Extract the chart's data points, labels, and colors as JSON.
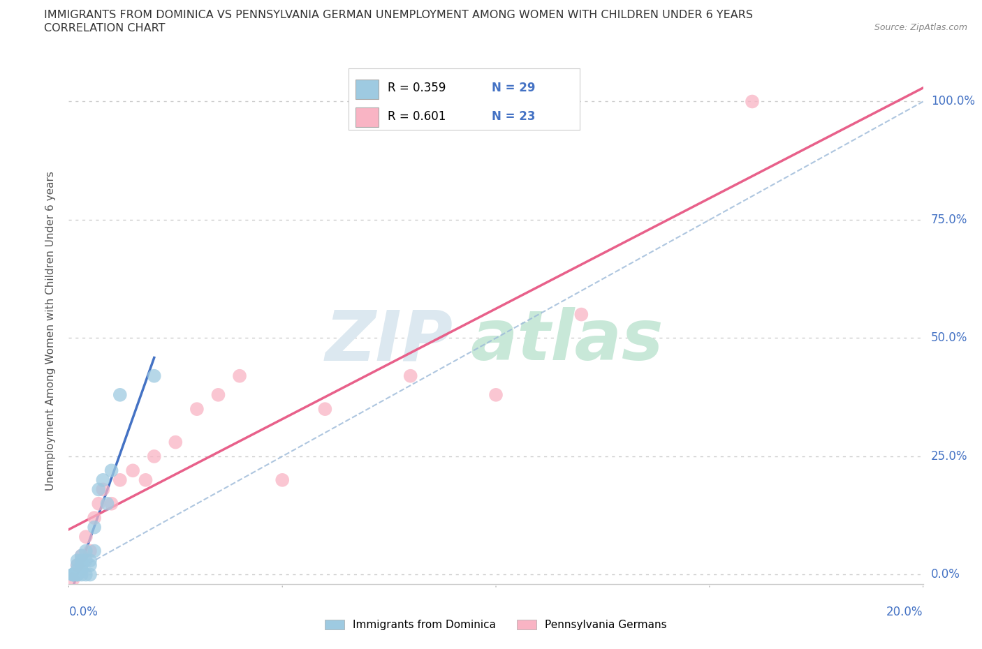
{
  "title_line1": "IMMIGRANTS FROM DOMINICA VS PENNSYLVANIA GERMAN UNEMPLOYMENT AMONG WOMEN WITH CHILDREN UNDER 6 YEARS",
  "title_line2": "CORRELATION CHART",
  "source": "Source: ZipAtlas.com",
  "ylabel": "Unemployment Among Women with Children Under 6 years",
  "xlim": [
    0.0,
    0.2
  ],
  "ylim": [
    -0.02,
    1.05
  ],
  "ytick_vals": [
    0.0,
    0.25,
    0.5,
    0.75,
    1.0
  ],
  "ytick_labels": [
    "0.0%",
    "25.0%",
    "50.0%",
    "75.0%",
    "100.0%"
  ],
  "xtick_labels_show": [
    "0.0%",
    "20.0%"
  ],
  "dominica_x": [
    0.001,
    0.001,
    0.001,
    0.001,
    0.002,
    0.002,
    0.002,
    0.002,
    0.002,
    0.002,
    0.003,
    0.003,
    0.003,
    0.003,
    0.003,
    0.004,
    0.004,
    0.004,
    0.005,
    0.005,
    0.005,
    0.006,
    0.006,
    0.007,
    0.008,
    0.009,
    0.01,
    0.012,
    0.02
  ],
  "dominica_y": [
    0.0,
    0.0,
    0.0,
    0.0,
    0.0,
    0.0,
    0.0,
    0.01,
    0.02,
    0.03,
    0.0,
    0.01,
    0.02,
    0.03,
    0.04,
    0.0,
    0.03,
    0.05,
    0.0,
    0.02,
    0.03,
    0.05,
    0.1,
    0.18,
    0.2,
    0.15,
    0.22,
    0.38,
    0.42
  ],
  "dominica_color": "#9ecae1",
  "dominica_label": "Immigrants from Dominica",
  "dominica_R": 0.359,
  "dominica_N": 29,
  "pagerman_x": [
    0.001,
    0.002,
    0.003,
    0.004,
    0.005,
    0.006,
    0.007,
    0.008,
    0.01,
    0.012,
    0.015,
    0.018,
    0.02,
    0.025,
    0.03,
    0.035,
    0.04,
    0.05,
    0.06,
    0.08,
    0.1,
    0.12,
    0.16
  ],
  "pagerman_y": [
    -0.01,
    0.02,
    0.04,
    0.08,
    0.05,
    0.12,
    0.15,
    0.18,
    0.15,
    0.2,
    0.22,
    0.2,
    0.25,
    0.28,
    0.35,
    0.38,
    0.42,
    0.2,
    0.35,
    0.42,
    0.38,
    0.55,
    1.0
  ],
  "pagerman_color": "#f9b4c4",
  "pagerman_label": "Pennsylvania Germans",
  "pagerman_R": 0.601,
  "pagerman_N": 23,
  "trend_blue_color": "#4472c4",
  "trend_pink_color": "#e8608a",
  "diagonal_color": "#9ab8d8",
  "bg_color": "#ffffff",
  "grid_color": "#cccccc",
  "legend_R_color": "#000000",
  "legend_N_color": "#4472c4",
  "legend_box_edge": "#cccccc"
}
